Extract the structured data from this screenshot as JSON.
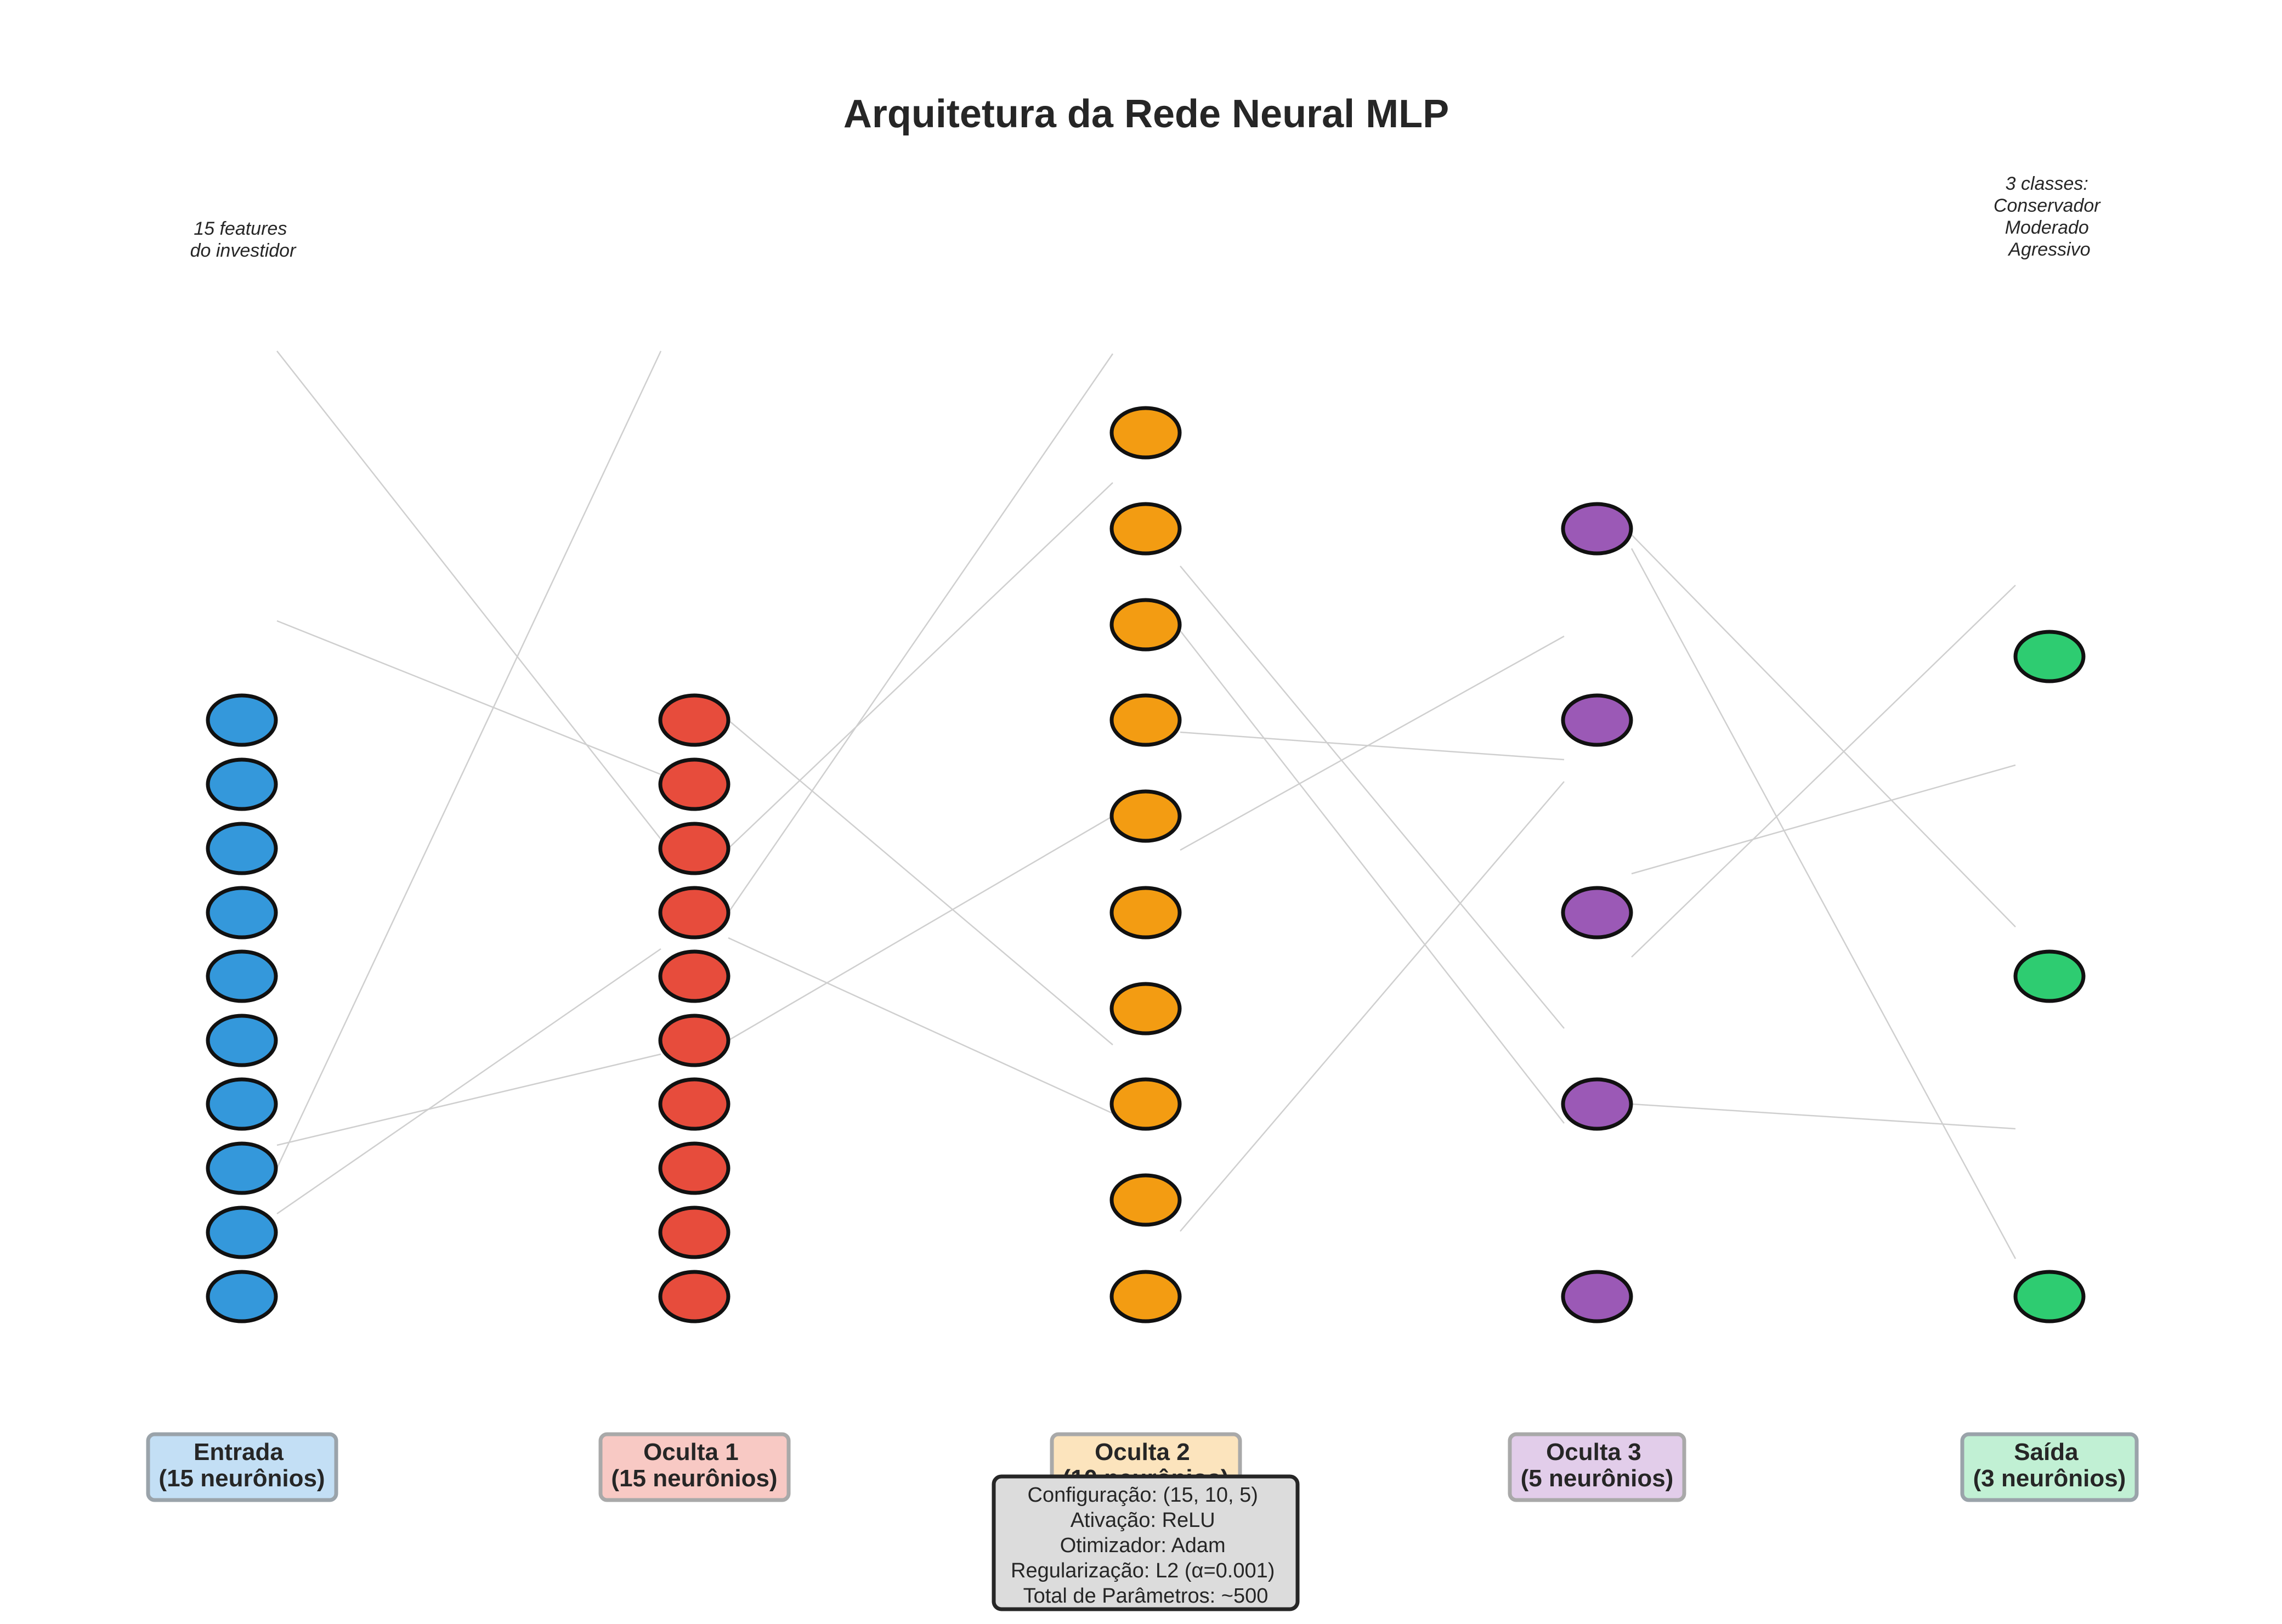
{
  "title": "Arquitetura da Rede Neural MLP",
  "input_note": [
    "15 features",
    "do investidor"
  ],
  "output_note": [
    "3 classes:",
    "Conservador",
    "Moderado",
    "Agressivo"
  ],
  "layers": [
    {
      "name": "Entrada",
      "count_label": "(15 neurônios)",
      "drawn_neurons": 10,
      "color": "#3498db",
      "label_bg": "#c3dff5"
    },
    {
      "name": "Oculta 1",
      "count_label": "(15 neurônios)",
      "drawn_neurons": 10,
      "color": "#e74c3c",
      "label_bg": "#f8c9c4"
    },
    {
      "name": "Oculta 2",
      "count_label": "(10 neurônios)",
      "drawn_neurons": 10,
      "color": "#f39c12",
      "label_bg": "#fce4bd"
    },
    {
      "name": "Oculta 3",
      "count_label": "(5 neurônios)",
      "drawn_neurons": 5,
      "color": "#9b59b6",
      "label_bg": "#e2cdea"
    },
    {
      "name": "Saída",
      "count_label": "(3 neurônios)",
      "drawn_neurons": 3,
      "color": "#2ecc71",
      "label_bg": "#c1f0d4"
    }
  ],
  "config_box": {
    "lines": [
      "Configuração: (15, 10, 5)",
      "Ativação: ReLU",
      "Otimizador: Adam",
      "Regularização: L2 (α=0.001)",
      "Total de Parâmetros: ~500"
    ],
    "bg": "#dcdcdc"
  },
  "connection_color": "#cfcfcf"
}
